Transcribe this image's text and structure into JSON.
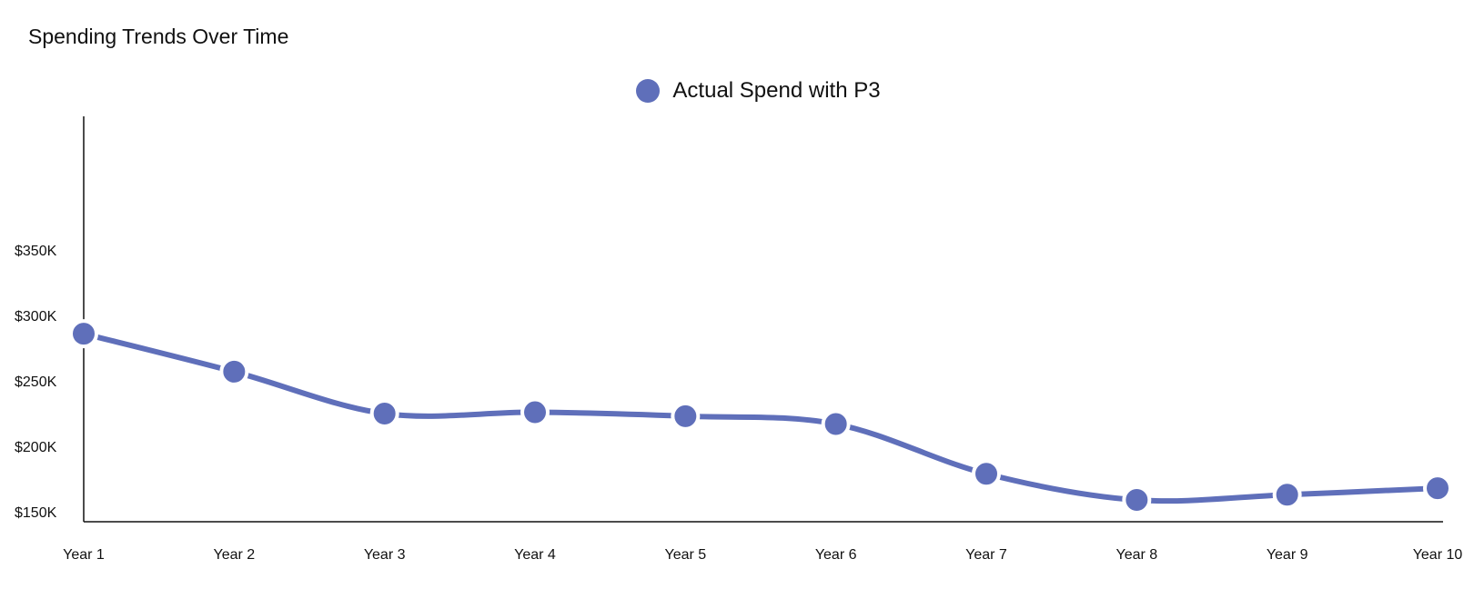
{
  "chart_data": {
    "type": "line",
    "title": "Spending Trends Over Time",
    "xlabel": "",
    "ylabel": "",
    "categories": [
      "Year 1",
      "Year 2",
      "Year 3",
      "Year 4",
      "Year 5",
      "Year 6",
      "Year 7",
      "Year 8",
      "Year 9",
      "Year 10"
    ],
    "series": [
      {
        "name": "Actual Spend with P3",
        "values": [
          286000,
          257000,
          225000,
          226000,
          223000,
          217000,
          179000,
          159000,
          163000,
          168000
        ],
        "color": "#5f6fba"
      }
    ],
    "y_ticks": [
      "$150K",
      "$200K",
      "$250K",
      "$300K",
      "$350K"
    ],
    "y_tick_values": [
      150000,
      200000,
      250000,
      300000,
      350000
    ],
    "ylim": [
      140000,
      450000
    ],
    "grid": false,
    "legend_position": "top-center",
    "smooth": true
  }
}
